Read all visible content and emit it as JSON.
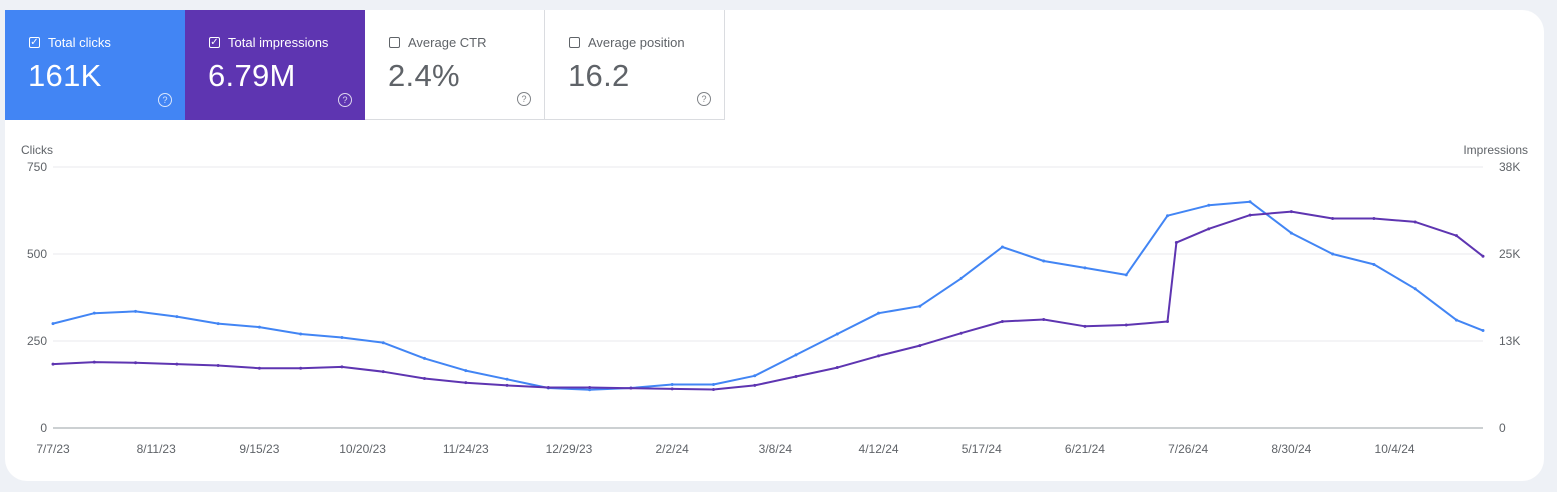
{
  "metrics": [
    {
      "label": "Total clicks",
      "value": "161K",
      "checked": true,
      "color": "#4285f4",
      "help": "?"
    },
    {
      "label": "Total impressions",
      "value": "6.79M",
      "checked": true,
      "color": "#5e35b1",
      "help": "?"
    },
    {
      "label": "Average CTR",
      "value": "2.4%",
      "checked": false,
      "help": "?"
    },
    {
      "label": "Average position",
      "value": "16.2",
      "checked": false,
      "help": "?"
    }
  ],
  "chart_data": {
    "type": "line",
    "ylabel_left": "Clicks",
    "ylabel_right": "Impressions",
    "y_left_ticks": [
      "0",
      "250",
      "500",
      "750"
    ],
    "y_left_range": [
      0,
      750
    ],
    "y_right_ticks": [
      "0",
      "13K",
      "25K",
      "38K"
    ],
    "y_right_range": [
      0,
      38000
    ],
    "x_ticks": [
      "7/7/23",
      "8/11/23",
      "9/15/23",
      "10/20/23",
      "11/24/23",
      "12/29/23",
      "2/2/24",
      "3/8/24",
      "4/12/24",
      "5/17/24",
      "6/21/24",
      "7/26/24",
      "8/30/24",
      "10/4/24"
    ],
    "x_range": [
      "7/7/23",
      "11/3/24"
    ],
    "grid": true,
    "series": [
      {
        "name": "Clicks",
        "axis": "left",
        "color": "#4285f4",
        "x": [
          "7/7/23",
          "7/21/23",
          "8/4/23",
          "8/18/23",
          "9/1/23",
          "9/15/23",
          "9/29/23",
          "10/13/23",
          "10/27/23",
          "11/10/23",
          "11/24/23",
          "12/8/23",
          "12/22/23",
          "1/5/24",
          "1/19/24",
          "2/2/24",
          "2/16/24",
          "3/1/24",
          "3/15/24",
          "3/29/24",
          "4/12/24",
          "4/26/24",
          "5/10/24",
          "5/24/24",
          "6/7/24",
          "6/21/24",
          "7/5/24",
          "7/19/24",
          "8/2/24",
          "8/16/24",
          "8/30/24",
          "9/13/24",
          "9/27/24",
          "10/11/24",
          "10/25/24",
          "11/3/24"
        ],
        "values": [
          300,
          330,
          335,
          320,
          300,
          290,
          270,
          260,
          245,
          200,
          165,
          140,
          115,
          110,
          115,
          125,
          125,
          150,
          210,
          270,
          330,
          350,
          430,
          520,
          480,
          460,
          440,
          610,
          640,
          650,
          560,
          500,
          470,
          400,
          310,
          280
        ]
      },
      {
        "name": "Impressions",
        "axis": "right",
        "color": "#5e35b1",
        "x": [
          "7/7/23",
          "7/21/23",
          "8/4/23",
          "8/18/23",
          "9/1/23",
          "9/15/23",
          "9/29/23",
          "10/13/23",
          "10/27/23",
          "11/10/23",
          "11/24/23",
          "12/8/23",
          "12/22/23",
          "1/5/24",
          "1/19/24",
          "2/2/24",
          "2/16/24",
          "3/1/24",
          "3/15/24",
          "3/29/24",
          "4/12/24",
          "4/26/24",
          "5/10/24",
          "5/24/24",
          "6/7/24",
          "6/21/24",
          "7/5/24",
          "7/19/24",
          "7/22/24",
          "8/2/24",
          "8/16/24",
          "8/30/24",
          "9/13/24",
          "9/27/24",
          "10/11/24",
          "10/25/24",
          "11/3/24"
        ],
        "values": [
          9300,
          9600,
          9500,
          9300,
          9100,
          8700,
          8700,
          8900,
          8200,
          7200,
          6600,
          6200,
          5900,
          5900,
          5800,
          5700,
          5600,
          6200,
          7500,
          8800,
          10500,
          12000,
          13800,
          15500,
          15800,
          14800,
          15000,
          15500,
          27000,
          29000,
          31000,
          31500,
          30500,
          30500,
          30000,
          28000,
          25000
        ]
      }
    ]
  }
}
